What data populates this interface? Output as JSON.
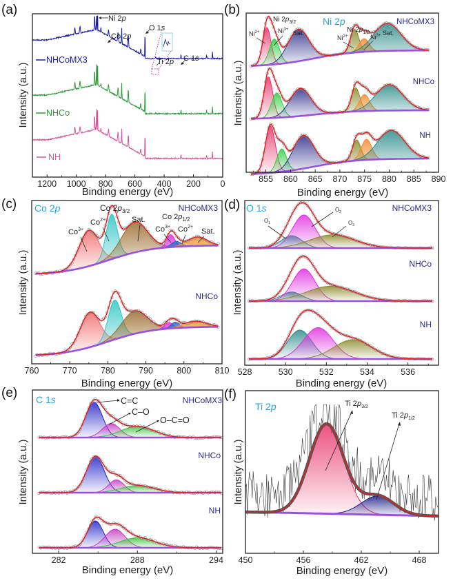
{
  "chart_data": [
    {
      "panel": "(a)",
      "type": "line",
      "title": "",
      "xlabel": "Binding energy (eV)",
      "ylabel": "Intensity (a.u.)",
      "xlim": [
        1300,
        0
      ],
      "x_reversed": true,
      "xticks": [
        "1200",
        "1000",
        "800",
        "600",
        "400",
        "200",
        "0"
      ],
      "legend": [
        "NHCoMX3",
        "NHCo",
        "NH"
      ],
      "legend_placement": "left, beside each curve",
      "series": [
        {
          "name": "NHCoMX3",
          "color": "#1a1aa6",
          "offset": 2
        },
        {
          "name": "NHCo",
          "color": "#2e9a3a",
          "offset": 1
        },
        {
          "name": "NH",
          "color": "#d9559a",
          "offset": 0
        }
      ],
      "peaks": [
        {
          "label": "Ni 2p",
          "x": 855
        },
        {
          "label": "Co 2p",
          "x": 780
        },
        {
          "label": "O 1s",
          "x": 531
        },
        {
          "label": "Ti 2p",
          "x": 458
        },
        {
          "label": "C 1s",
          "x": 285
        }
      ],
      "extra_peaks_x": [
        1010,
        975,
        875,
        832,
        715,
        690,
        645,
        560,
        110,
        70
      ],
      "inset": "magnified Ti 2p region (dotted box)"
    },
    {
      "panel": "(b)",
      "type": "area",
      "title": "Ni 2p",
      "xlabel": "Binding energy (eV)",
      "ylabel": "Intensity (a.u.)",
      "xlim": [
        851,
        890
      ],
      "xticks": [
        "855",
        "860",
        "865",
        "870",
        "875",
        "880",
        "885",
        "890"
      ],
      "samples": [
        "NHCoMX3",
        "NHCo",
        "NH"
      ],
      "annotations": [
        "Ni 2p3/2",
        "Ni2+",
        "Ni3+",
        "Sat.",
        "Ni 2p1/2",
        "Ni2+",
        "Ni3+",
        "Sat."
      ],
      "components": {
        "NHCoMX3": [
          {
            "name": "Ni2+ (2p3/2)",
            "center": 855.2,
            "fwhm": 2.0,
            "height": 0.68,
            "color": "#e8336a"
          },
          {
            "name": "Ni3+ (2p3/2)",
            "center": 856.7,
            "fwhm": 2.4,
            "height": 0.46,
            "color": "#2ecc40"
          },
          {
            "name": "Sat. (2p3/2)",
            "center": 861.6,
            "fwhm": 5.0,
            "height": 0.58,
            "color": "#2a2a8a"
          },
          {
            "name": "Ni2+ (2p1/2)",
            "center": 873.0,
            "fwhm": 2.0,
            "height": 0.42,
            "color": "#8a8a2a"
          },
          {
            "name": "Ni3+ (2p1/2)",
            "center": 874.9,
            "fwhm": 2.4,
            "height": 0.24,
            "color": "#f08a2a"
          },
          {
            "name": "Sat. (2p1/2)",
            "center": 879.6,
            "fwhm": 6.5,
            "height": 0.5,
            "color": "#2a8a8a"
          }
        ],
        "NHCo": [
          {
            "name": "Ni2+ (2p3/2)",
            "center": 855.5,
            "fwhm": 2.1,
            "height": 0.75,
            "color": "#e8336a"
          },
          {
            "name": "Ni3+ (2p3/2)",
            "center": 857.2,
            "fwhm": 2.5,
            "height": 0.45,
            "color": "#2ecc40"
          },
          {
            "name": "Sat. (2p3/2)",
            "center": 862.0,
            "fwhm": 5.0,
            "height": 0.5,
            "color": "#2a2a8a"
          },
          {
            "name": "Ni2+ (2p1/2)",
            "center": 873.2,
            "fwhm": 2.0,
            "height": 0.43,
            "color": "#8a8a2a"
          },
          {
            "name": "Ni3+ (2p1/2)",
            "center": 875.0,
            "fwhm": 2.4,
            "height": 0.3,
            "color": "#f08a2a"
          },
          {
            "name": "Sat. (2p1/2)",
            "center": 880.0,
            "fwhm": 6.5,
            "height": 0.47,
            "color": "#2a8a8a"
          }
        ],
        "NH": [
          {
            "name": "Ni2+ (2p3/2)",
            "center": 855.9,
            "fwhm": 2.4,
            "height": 0.82,
            "color": "#e8336a"
          },
          {
            "name": "Ni3+ (2p3/2)",
            "center": 858.2,
            "fwhm": 2.3,
            "height": 0.4,
            "color": "#2ecc40"
          },
          {
            "name": "Sat. (2p3/2)",
            "center": 862.6,
            "fwhm": 5.0,
            "height": 0.58,
            "color": "#2a2a8a"
          },
          {
            "name": "Ni2+ (2p1/2)",
            "center": 873.4,
            "fwhm": 2.0,
            "height": 0.36,
            "color": "#8a8a2a"
          },
          {
            "name": "Ni3+ (2p1/2)",
            "center": 875.4,
            "fwhm": 2.5,
            "height": 0.36,
            "color": "#f08a2a"
          },
          {
            "name": "Sat. (2p1/2)",
            "center": 880.4,
            "fwhm": 6.5,
            "height": 0.5,
            "color": "#2a8a8a"
          }
        ]
      }
    },
    {
      "panel": "(c)",
      "type": "area",
      "title": "Co 2p",
      "xlabel": "Binding energy (eV)",
      "ylabel": "Intensity (a.u.)",
      "xlim": [
        760,
        810
      ],
      "xticks": [
        "760",
        "770",
        "780",
        "790",
        "800",
        "810"
      ],
      "samples": [
        "NHCoMX3",
        "NHCo"
      ],
      "annotations": [
        "Co 2p3/2",
        "Co3+",
        "Co2+",
        "Sat.",
        "Co 2p1/2",
        "Co3+",
        "Co2+",
        "Sat."
      ],
      "components": {
        "NHCoMX3": [
          {
            "name": "Co3+ (2p3/2)",
            "center": 775.0,
            "fwhm": 6.0,
            "height": 0.4,
            "color": "#f06a6a"
          },
          {
            "name": "Co2+ (2p3/2)",
            "center": 781.0,
            "fwhm": 3.5,
            "height": 0.5,
            "color": "#2ec4c4"
          },
          {
            "name": "Sat. (2p3/2)",
            "center": 787.0,
            "fwhm": 8.0,
            "height": 0.34,
            "color": "#9a6a2a"
          },
          {
            "name": "Co3+ (2p1/2)",
            "center": 796.5,
            "fwhm": 2.5,
            "height": 0.14,
            "color": "#e02ee0"
          },
          {
            "name": "Co2+ (2p1/2)",
            "center": 798.0,
            "fwhm": 3.0,
            "height": 0.06,
            "color": "#2a6ac4"
          },
          {
            "name": "Sat. (2p1/2)",
            "center": 803.5,
            "fwhm": 6.0,
            "height": 0.1,
            "color": "#f0962a"
          }
        ],
        "NHCo": [
          {
            "name": "Co3+ (2p3/2)",
            "center": 775.3,
            "fwhm": 6.0,
            "height": 0.46,
            "color": "#f06a6a"
          },
          {
            "name": "Co2+ (2p3/2)",
            "center": 781.8,
            "fwhm": 4.0,
            "height": 0.52,
            "color": "#2ec4c4"
          },
          {
            "name": "Sat. (2p3/2)",
            "center": 787.0,
            "fwhm": 8.0,
            "height": 0.3,
            "color": "#9a6a2a"
          },
          {
            "name": "Co3+ (2p1/2)",
            "center": 796.0,
            "fwhm": 2.5,
            "height": 0.08,
            "color": "#e02ee0"
          },
          {
            "name": "Co2+ (2p1/2)",
            "center": 797.7,
            "fwhm": 2.5,
            "height": 0.08,
            "color": "#2a6ac4"
          },
          {
            "name": "Sat. (2p1/2)",
            "center": 803.0,
            "fwhm": 7.0,
            "height": 0.08,
            "color": "#f0962a"
          }
        ]
      }
    },
    {
      "panel": "(d)",
      "type": "area",
      "title": "O 1s",
      "xlabel": "Binding energy (eV)",
      "ylabel": "Intensity (a.u.)",
      "xlim": [
        528,
        537.5
      ],
      "xticks": [
        "528",
        "530",
        "532",
        "534",
        "536"
      ],
      "samples": [
        "NHCoMX3",
        "NHCo",
        "NH"
      ],
      "annotations": [
        "O1",
        "O2",
        "O3"
      ],
      "components": {
        "NHCoMX3": [
          {
            "name": "O1",
            "center": 530.3,
            "fwhm": 1.2,
            "height": 0.3,
            "color": "#2a8a8a"
          },
          {
            "name": "O2",
            "center": 530.9,
            "fwhm": 1.3,
            "height": 0.8,
            "color": "#e02ee0"
          },
          {
            "name": "O3",
            "center": 532.3,
            "fwhm": 2.6,
            "height": 0.32,
            "color": "#8a8a2a"
          }
        ],
        "NHCo": [
          {
            "name": "O1",
            "center": 530.3,
            "fwhm": 1.2,
            "height": 0.22,
            "color": "#2a8a8a"
          },
          {
            "name": "O2",
            "center": 530.9,
            "fwhm": 1.3,
            "height": 0.78,
            "color": "#e02ee0"
          },
          {
            "name": "O3",
            "center": 532.2,
            "fwhm": 2.8,
            "height": 0.36,
            "color": "#8a8a2a"
          }
        ],
        "NH": [
          {
            "name": "O1",
            "center": 530.7,
            "fwhm": 1.4,
            "height": 0.6,
            "color": "#2a8a8a"
          },
          {
            "name": "O2",
            "center": 531.6,
            "fwhm": 1.7,
            "height": 0.65,
            "color": "#e02ee0"
          },
          {
            "name": "O3",
            "center": 533.3,
            "fwhm": 2.2,
            "height": 0.4,
            "color": "#8a8a2a"
          }
        ]
      }
    },
    {
      "panel": "(e)",
      "type": "area",
      "title": "C 1s",
      "xlabel": "Binding energy (eV)",
      "ylabel": "Intensity (a.u.)",
      "xlim": [
        280,
        294.5
      ],
      "xticks": [
        "282",
        "288",
        "294"
      ],
      "samples": [
        "NHCoMX3",
        "NHCo",
        "NH"
      ],
      "annotations": [
        "C=C",
        "C–O",
        "O–C=O"
      ],
      "components": {
        "NHCoMX3": [
          {
            "name": "C=C",
            "center": 284.7,
            "fwhm": 1.5,
            "height": 0.88,
            "color": "#2323c8"
          },
          {
            "name": "C–O",
            "center": 286.0,
            "fwhm": 1.6,
            "height": 0.35,
            "color": "#c43ac4"
          },
          {
            "name": "O–C=O",
            "center": 288.0,
            "fwhm": 3.0,
            "height": 0.28,
            "color": "#3ac43a"
          }
        ],
        "NHCo": [
          {
            "name": "C=C",
            "center": 284.8,
            "fwhm": 1.6,
            "height": 0.9,
            "color": "#2323c8"
          },
          {
            "name": "C–O",
            "center": 286.4,
            "fwhm": 1.4,
            "height": 0.32,
            "color": "#c43ac4"
          },
          {
            "name": "O–C=O",
            "center": 288.0,
            "fwhm": 3.0,
            "height": 0.18,
            "color": "#3ac43a"
          }
        ],
        "NH": [
          {
            "name": "C=C",
            "center": 284.8,
            "fwhm": 1.4,
            "height": 0.65,
            "color": "#2323c8"
          },
          {
            "name": "C–O",
            "center": 286.3,
            "fwhm": 1.8,
            "height": 0.45,
            "color": "#c43ac4"
          },
          {
            "name": "O–C=O",
            "center": 288.0,
            "fwhm": 3.2,
            "height": 0.24,
            "color": "#3ac43a"
          }
        ]
      }
    },
    {
      "panel": "(f)",
      "type": "area",
      "title": "Ti 2p",
      "xlabel": "Binding energy (eV)",
      "ylabel": "Intensity (a.u.)",
      "xlim": [
        450,
        470
      ],
      "xticks": [
        "450",
        "456",
        "462",
        "468"
      ],
      "samples": [
        "NHCoMX3"
      ],
      "annotations": [
        "Ti 2p3/2",
        "Ti 2p1/2"
      ],
      "components": {
        "NHCoMX3": [
          {
            "name": "Ti 2p3/2",
            "center": 458.4,
            "fwhm": 4.2,
            "height": 0.62,
            "color": "#e8336a"
          },
          {
            "name": "Ti 2p1/2",
            "center": 463.7,
            "fwhm": 4.0,
            "height": 0.13,
            "color": "#1a1a8a"
          }
        ]
      },
      "raw_data": "noisy spectrum (black line) around fit"
    }
  ],
  "panels": {
    "a": {
      "label": "(a)",
      "legend": [
        "NHCoMX3",
        "NHCo",
        "NH"
      ],
      "peaks": {
        "ni": "Ni 2",
        "co": "Co 2",
        "o": "O 1",
        "ti": "Ti 2",
        "c": "C 1"
      },
      "orb_p": "p",
      "orb_s": "s"
    },
    "b": {
      "label": "(b)",
      "title_a": "Ni 2",
      "title_b": "p",
      "samples": [
        "NHCoMX3",
        "NHCo",
        "NH"
      ],
      "ann": {
        "p32a": "Ni 2",
        "p32b": "p",
        "p32c": "3/2",
        "ni2": "Ni",
        "ni2s": "2+",
        "ni3": "Ni",
        "ni3s": "3+",
        "sat": "Sat.",
        "p12a": "Ni 2",
        "p12b": "p",
        "p12c": "1/2",
        "ni2b": "Ni",
        "ni2bs": "2+",
        "ni3b": "Ni",
        "ni3bs": "3+",
        "satb": "Sat."
      }
    },
    "c": {
      "label": "(c)",
      "title_a": "Co 2",
      "title_b": "p",
      "samples": [
        "NHCoMX3",
        "NHCo"
      ],
      "ann": {
        "p32a": "Co 2",
        "p32b": "p",
        "p32c": "3/2",
        "co3": "Co",
        "co3s": "3+",
        "co2": "Co",
        "co2s": "2+",
        "sat": "Sat.",
        "p12a": "Co 2",
        "p12b": "p",
        "p12c": "1/2",
        "co3b": "Co",
        "co3bs": "3+",
        "co2b": "Co",
        "co2bs": "2+",
        "satb": "Sat."
      }
    },
    "d": {
      "label": "(d)",
      "title_a": "O 1",
      "title_b": "s",
      "samples": [
        "NHCoMX3",
        "NHCo",
        "NH"
      ],
      "ann": {
        "o1": "O",
        "o1s": "1",
        "o2": "O",
        "o2s": "2",
        "o3": "O",
        "o3s": "3"
      }
    },
    "e": {
      "label": "(e)",
      "title_a": "C 1",
      "title_b": "s",
      "samples": [
        "NHCoMX3",
        "NHCo",
        "NH"
      ],
      "ann": {
        "cc": "C=C",
        "co": "C–O",
        "oco": "O–C=O"
      }
    },
    "f": {
      "label": "(f)",
      "title_a": "Ti 2",
      "title_b": "p",
      "ann": {
        "p32a": "Ti 2",
        "p32b": "p",
        "p32c": "3/2",
        "p12a": "Ti 2",
        "p12b": "p",
        "p12c": "1/2"
      }
    }
  },
  "axes": {
    "xlabel": "Binding energy (eV)",
    "ylabel": "Intensity (a.u.)"
  }
}
